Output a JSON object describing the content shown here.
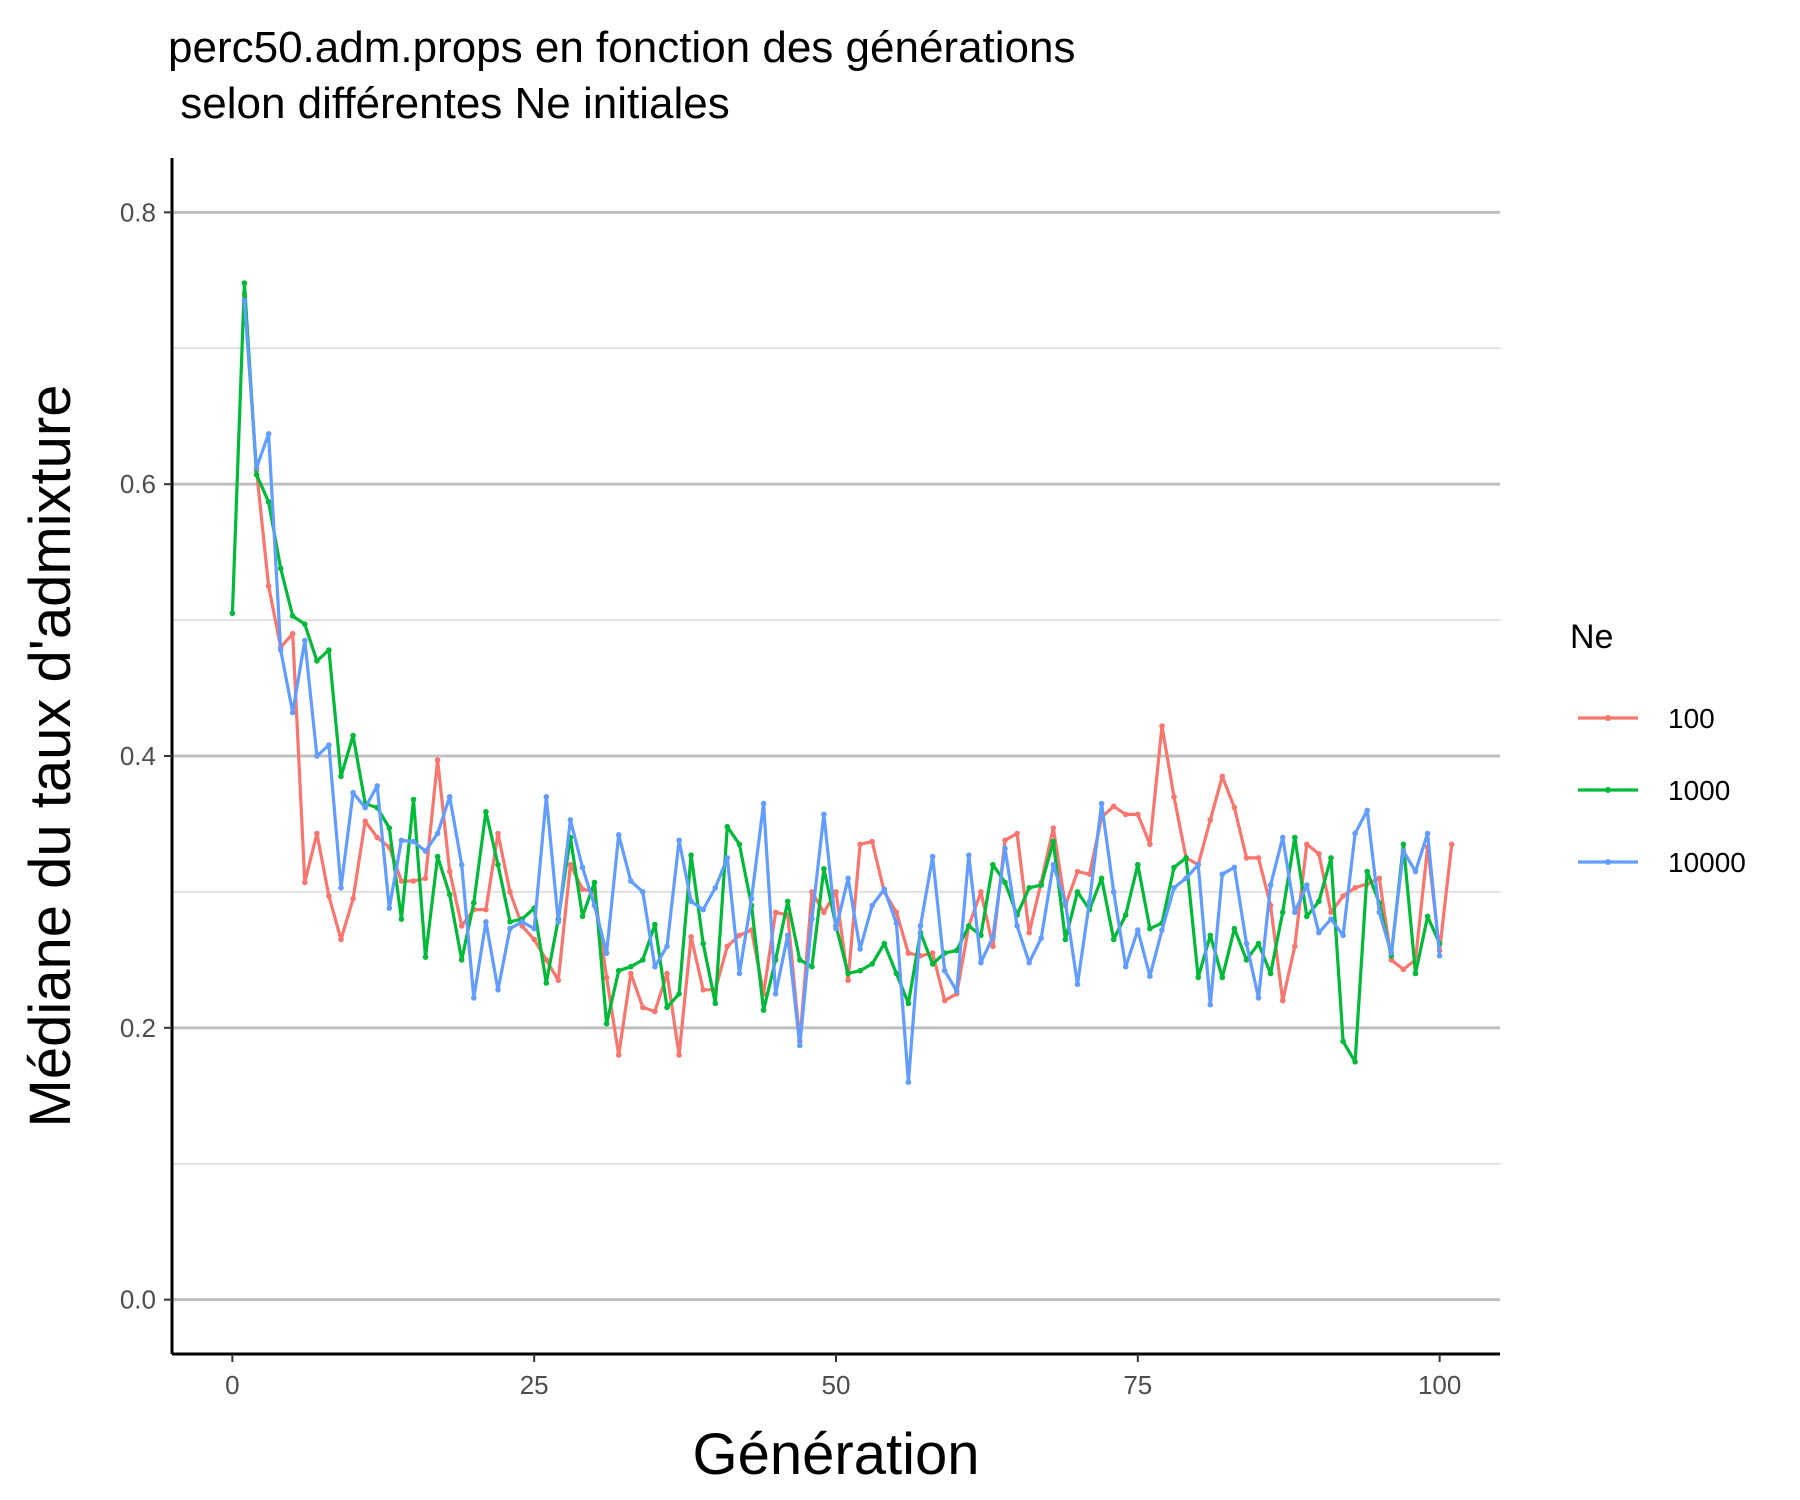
{
  "chart_data": {
    "type": "line",
    "title": [
      "perc50.adm.props en fonction des générations",
      " selon différentes Ne initiales"
    ],
    "xlabel": "Génération",
    "ylabel": "Médiane du taux d'admixture",
    "xlim": [
      -5,
      105
    ],
    "ylim": [
      -0.04,
      0.84
    ],
    "x_ticks": [
      0,
      25,
      50,
      75,
      100
    ],
    "x_tick_labels": [
      "0",
      "25",
      "50",
      "75",
      "100"
    ],
    "y_ticks": [
      0.0,
      0.2,
      0.4,
      0.6,
      0.8
    ],
    "y_tick_labels": [
      "0.0",
      "0.2",
      "0.4",
      "0.6",
      "0.8"
    ],
    "y_minor_ticks": [
      0.1,
      0.3,
      0.5,
      0.7
    ],
    "grid": "horizontal",
    "legend_title": "Ne",
    "legend_position": "right",
    "series": [
      {
        "name": "100",
        "color": "#F8766D",
        "x_start": 1,
        "values": [
          0.74,
          0.61,
          0.525,
          0.48,
          0.49,
          0.307,
          0.343,
          0.297,
          0.265,
          0.295,
          0.352,
          0.34,
          0.333,
          0.308,
          0.308,
          0.31,
          0.397,
          0.315,
          0.275,
          0.287,
          0.287,
          0.343,
          0.3,
          0.275,
          0.265,
          0.25,
          0.235,
          0.32,
          0.302,
          0.3,
          0.237,
          0.18,
          0.24,
          0.215,
          0.212,
          0.24,
          0.18,
          0.267,
          0.228,
          0.228,
          0.26,
          0.268,
          0.272,
          0.225,
          0.285,
          0.283,
          0.19,
          0.3,
          0.285,
          0.3,
          0.235,
          0.335,
          0.337,
          0.3,
          0.285,
          0.255,
          0.253,
          0.255,
          0.22,
          0.225,
          0.275,
          0.3,
          0.26,
          0.338,
          0.343,
          0.27,
          0.307,
          0.347,
          0.29,
          0.315,
          0.313,
          0.355,
          0.363,
          0.357,
          0.357,
          0.335,
          0.422,
          0.37,
          0.325,
          0.32,
          0.353,
          0.385,
          0.362,
          0.325,
          0.325,
          0.29,
          0.22,
          0.26,
          0.335,
          0.328,
          0.285,
          0.297,
          0.303,
          0.306,
          0.31,
          0.25,
          0.243,
          0.25,
          0.333,
          0.257,
          0.335
        ]
      },
      {
        "name": "1000",
        "color": "#00BA38",
        "x_start": 0,
        "values": [
          0.505,
          0.748,
          0.607,
          0.587,
          0.538,
          0.503,
          0.497,
          0.47,
          0.478,
          0.385,
          0.415,
          0.365,
          0.362,
          0.347,
          0.28,
          0.368,
          0.252,
          0.326,
          0.298,
          0.25,
          0.292,
          0.359,
          0.32,
          0.278,
          0.28,
          0.288,
          0.233,
          0.28,
          0.34,
          0.282,
          0.307,
          0.203,
          0.242,
          0.245,
          0.25,
          0.276,
          0.215,
          0.225,
          0.327,
          0.262,
          0.218,
          0.348,
          0.335,
          0.29,
          0.213,
          0.25,
          0.293,
          0.25,
          0.245,
          0.317,
          0.275,
          0.24,
          0.242,
          0.247,
          0.262,
          0.24,
          0.218,
          0.27,
          0.247,
          0.255,
          0.257,
          0.275,
          0.268,
          0.32,
          0.307,
          0.283,
          0.303,
          0.305,
          0.337,
          0.265,
          0.3,
          0.287,
          0.31,
          0.265,
          0.283,
          0.32,
          0.273,
          0.277,
          0.318,
          0.325,
          0.237,
          0.268,
          0.237,
          0.273,
          0.25,
          0.262,
          0.24,
          0.285,
          0.34,
          0.282,
          0.293,
          0.325,
          0.19,
          0.175,
          0.315,
          0.292,
          0.253,
          0.335,
          0.24,
          0.282,
          0.262
        ]
      },
      {
        "name": "10000",
        "color": "#619CFF",
        "x_start": 1,
        "values": [
          0.735,
          0.612,
          0.637,
          0.478,
          0.432,
          0.485,
          0.4,
          0.408,
          0.303,
          0.373,
          0.362,
          0.378,
          0.288,
          0.338,
          0.337,
          0.33,
          0.343,
          0.37,
          0.32,
          0.222,
          0.278,
          0.228,
          0.273,
          0.278,
          0.273,
          0.37,
          0.278,
          0.353,
          0.318,
          0.29,
          0.255,
          0.342,
          0.308,
          0.3,
          0.245,
          0.26,
          0.338,
          0.293,
          0.287,
          0.303,
          0.325,
          0.24,
          0.295,
          0.365,
          0.225,
          0.268,
          0.187,
          0.28,
          0.357,
          0.273,
          0.31,
          0.258,
          0.29,
          0.302,
          0.277,
          0.16,
          0.275,
          0.326,
          0.242,
          0.227,
          0.327,
          0.248,
          0.267,
          0.332,
          0.275,
          0.248,
          0.266,
          0.32,
          0.292,
          0.232,
          0.293,
          0.365,
          0.3,
          0.245,
          0.272,
          0.238,
          0.272,
          0.303,
          0.31,
          0.32,
          0.217,
          0.313,
          0.318,
          0.262,
          0.222,
          0.305,
          0.34,
          0.285,
          0.305,
          0.27,
          0.28,
          0.268,
          0.343,
          0.36,
          0.285,
          0.255,
          0.33,
          0.315,
          0.343,
          0.253
        ]
      }
    ]
  }
}
